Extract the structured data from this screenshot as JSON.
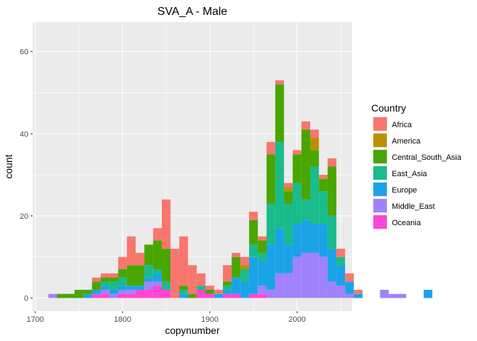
{
  "chart_data": {
    "type": "bar",
    "subtype": "stacked-histogram",
    "title": "SVA_A - Male",
    "xlabel": "copynumber",
    "ylabel": "count",
    "xlim": [
      1697,
      2063
    ],
    "ylim": [
      -3.2,
      67.2
    ],
    "x_ticks": [
      1700,
      1800,
      1900,
      2000
    ],
    "y_ticks": [
      0,
      20,
      40,
      60
    ],
    "bin_width": 10,
    "grid": true,
    "legend": {
      "title": "Country",
      "position": "right"
    },
    "series": [
      {
        "name": "Oceania",
        "color": "#FF45D4",
        "values": [
          0,
          0,
          0,
          0,
          0,
          1,
          1,
          0,
          1,
          1,
          2,
          2,
          3,
          2,
          0,
          0,
          0,
          2,
          1,
          0,
          1,
          1,
          0,
          1,
          1,
          0,
          0,
          0,
          0,
          0,
          0,
          0,
          0,
          0,
          0,
          0,
          0,
          0,
          0,
          0,
          0,
          0,
          0,
          0
        ]
      },
      {
        "name": "Middle_East",
        "color": "#A082FC",
        "values": [
          1,
          0,
          0,
          0,
          0,
          0,
          1,
          1,
          1,
          1,
          0,
          2,
          1,
          0,
          0,
          0,
          0,
          0,
          0,
          0,
          0,
          0,
          0,
          0,
          2,
          2,
          6,
          6,
          10,
          11,
          11,
          10,
          4,
          3,
          1,
          0,
          0,
          0,
          2,
          1,
          1,
          0,
          0,
          0
        ]
      },
      {
        "name": "Europe",
        "color": "#1BA3E8",
        "values": [
          0,
          0,
          0,
          0,
          1,
          1,
          1,
          1,
          1,
          1,
          1,
          1,
          2,
          0,
          0,
          1,
          0,
          0,
          0,
          1,
          1,
          4,
          4,
          9,
          6,
          11,
          11,
          7,
          8,
          8,
          7,
          8,
          8,
          5,
          3,
          1,
          0,
          0,
          0,
          0,
          0,
          0,
          0,
          2
        ]
      },
      {
        "name": "East_Asia",
        "color": "#19BC8A",
        "values": [
          0,
          0,
          0,
          0,
          0,
          0,
          1,
          2,
          2,
          0,
          0,
          3,
          1,
          2,
          0,
          1,
          0,
          1,
          0,
          0,
          1,
          0,
          3,
          3,
          2,
          10,
          21,
          10,
          10,
          5,
          14,
          8,
          8,
          2,
          0,
          0,
          0,
          0,
          0,
          0,
          0,
          0,
          0,
          0
        ]
      },
      {
        "name": "Central_South_Asia",
        "color": "#49A500",
        "values": [
          0,
          1,
          1,
          2,
          1,
          2,
          1,
          1,
          2,
          5,
          5,
          5,
          7,
          8,
          0,
          1,
          1,
          0,
          1,
          0,
          1,
          5,
          0,
          6,
          3,
          12,
          14,
          3,
          7,
          17,
          4,
          3,
          12,
          0,
          0,
          0,
          0,
          0,
          0,
          0,
          0,
          0,
          0,
          0
        ]
      },
      {
        "name": "America",
        "color": "#B89200",
        "values": [
          0,
          0,
          0,
          0,
          0,
          0,
          0,
          0,
          0,
          0,
          0,
          0,
          0,
          0,
          0,
          0,
          0,
          0,
          0,
          0,
          0,
          0,
          1,
          0,
          0,
          0,
          0,
          1,
          0,
          0,
          3,
          0,
          0,
          0,
          0,
          0,
          0,
          0,
          0,
          0,
          0,
          0,
          0,
          0
        ]
      },
      {
        "name": "Africa",
        "color": "#F8766D",
        "values": [
          0,
          0,
          0,
          0,
          0,
          1,
          1,
          1,
          3,
          7,
          3,
          0,
          3,
          12,
          12,
          12,
          7,
          3,
          1,
          1,
          4,
          1,
          2,
          2,
          1,
          3,
          1,
          1,
          1,
          2,
          2,
          1,
          2,
          2,
          2,
          1,
          0,
          0,
          0,
          0,
          0,
          0,
          0,
          0
        ]
      }
    ],
    "bin_starts": [
      1715,
      1725,
      1735,
      1745,
      1755,
      1765,
      1775,
      1785,
      1795,
      1805,
      1815,
      1825,
      1835,
      1845,
      1855,
      1865,
      1875,
      1885,
      1895,
      1905,
      1915,
      1925,
      1935,
      1945,
      1955,
      1965,
      1975,
      1985,
      1995,
      2005,
      2015,
      2025,
      2035,
      2045,
      2055,
      2065,
      2075,
      2085,
      2095,
      2105,
      2115,
      2125,
      2135,
      2145
    ]
  }
}
